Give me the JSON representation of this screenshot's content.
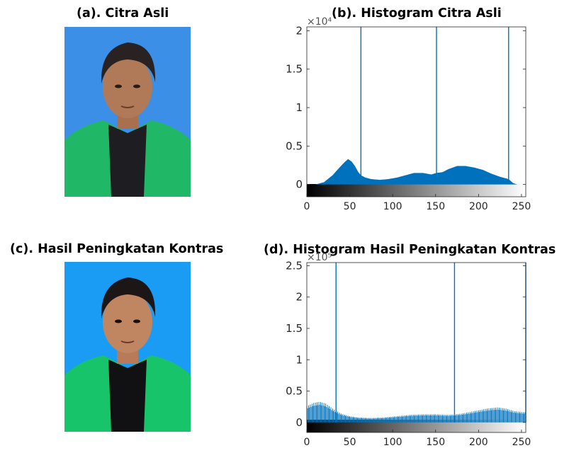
{
  "panels": {
    "a_title": "(a). Citra Asli",
    "b_title": "(b). Histogram Citra Asli",
    "c_title": "(c). Hasil Peningkatan Kontras",
    "d_title": "(d). Histogram Hasil Peningkatan Kontras"
  },
  "colors": {
    "bar": "#0072bd",
    "photo_bg_original": "#3b8fe6",
    "photo_bg_enhanced": "#1a9cf5",
    "jacket": "#20b866",
    "skin": "#b07a58",
    "hair": "#2a2222"
  },
  "chart_data": [
    {
      "type": "area",
      "title": "(b). Histogram Citra Asli",
      "exponent_label": "×10⁴",
      "xlim": [
        0,
        255
      ],
      "ylim": [
        -0.16,
        2.05
      ],
      "xticks": [
        0,
        50,
        100,
        150,
        200,
        250
      ],
      "yticks": [
        0,
        0.5,
        1,
        1.5,
        2
      ],
      "ytick_labels": [
        "0",
        "0.5",
        "1",
        "1.5",
        "2"
      ],
      "colorbar": "grayscale",
      "spikes": [
        {
          "x": 63,
          "y": 2.05
        },
        {
          "x": 151,
          "y": 2.05
        },
        {
          "x": 235,
          "y": 2.05
        }
      ],
      "envelope": [
        [
          0,
          0.0
        ],
        [
          10,
          0.0
        ],
        [
          20,
          0.03
        ],
        [
          30,
          0.12
        ],
        [
          38,
          0.22
        ],
        [
          44,
          0.29
        ],
        [
          48,
          0.33
        ],
        [
          52,
          0.3
        ],
        [
          56,
          0.24
        ],
        [
          60,
          0.16
        ],
        [
          63,
          0.12
        ],
        [
          68,
          0.09
        ],
        [
          75,
          0.07
        ],
        [
          85,
          0.06
        ],
        [
          95,
          0.07
        ],
        [
          105,
          0.09
        ],
        [
          115,
          0.12
        ],
        [
          125,
          0.15
        ],
        [
          135,
          0.15
        ],
        [
          145,
          0.13
        ],
        [
          151,
          0.15
        ],
        [
          158,
          0.16
        ],
        [
          165,
          0.2
        ],
        [
          175,
          0.24
        ],
        [
          185,
          0.24
        ],
        [
          195,
          0.22
        ],
        [
          205,
          0.19
        ],
        [
          215,
          0.14
        ],
        [
          225,
          0.1
        ],
        [
          235,
          0.07
        ],
        [
          240,
          0.02
        ],
        [
          245,
          0.0
        ],
        [
          255,
          0.0
        ]
      ]
    },
    {
      "type": "bar",
      "title": "(d). Histogram Hasil Peningkatan Kontras",
      "exponent_label": "×10⁵",
      "xlim": [
        0,
        255
      ],
      "ylim": [
        -0.16,
        2.55
      ],
      "xticks": [
        0,
        50,
        100,
        150,
        200,
        250
      ],
      "yticks": [
        0,
        0.5,
        1,
        1.5,
        2,
        2.5
      ],
      "ytick_labels": [
        "0",
        "0.5",
        "1",
        "1.5",
        "2",
        "2.5"
      ],
      "colorbar": "grayscale",
      "spikes": [
        {
          "x": 34,
          "y": 2.55
        },
        {
          "x": 172,
          "y": 2.55
        },
        {
          "x": 255,
          "y": 2.55
        }
      ],
      "envelope": [
        [
          0,
          0.26
        ],
        [
          8,
          0.31
        ],
        [
          15,
          0.33
        ],
        [
          22,
          0.3
        ],
        [
          30,
          0.22
        ],
        [
          40,
          0.14
        ],
        [
          50,
          0.1
        ],
        [
          60,
          0.08
        ],
        [
          75,
          0.07
        ],
        [
          90,
          0.08
        ],
        [
          105,
          0.1
        ],
        [
          120,
          0.12
        ],
        [
          135,
          0.13
        ],
        [
          150,
          0.13
        ],
        [
          165,
          0.12
        ],
        [
          172,
          0.13
        ],
        [
          180,
          0.14
        ],
        [
          195,
          0.18
        ],
        [
          210,
          0.22
        ],
        [
          222,
          0.24
        ],
        [
          232,
          0.22
        ],
        [
          242,
          0.18
        ],
        [
          255,
          0.16
        ]
      ]
    }
  ]
}
